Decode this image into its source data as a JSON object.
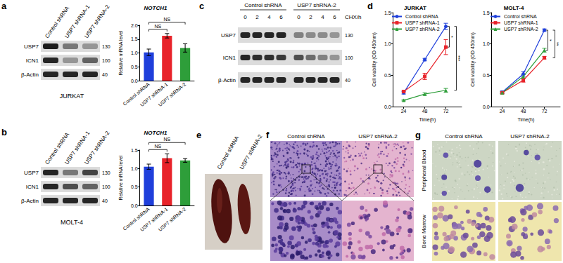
{
  "panel_letters": [
    "a",
    "b",
    "c",
    "d",
    "e",
    "f",
    "g"
  ],
  "blots": [
    {
      "lanes": [
        "Control shRNA",
        "USP7 shRNA-1",
        "USP7 shRNA-2"
      ],
      "rows": [
        {
          "name": "USP7",
          "mw": 130,
          "intensity": [
            0.95,
            0.5,
            0.35
          ]
        },
        {
          "name": "ICN1",
          "mw": 100,
          "intensity": [
            0.9,
            0.35,
            0.6
          ]
        },
        {
          "name": "β-Actin",
          "mw": 40,
          "intensity": [
            0.9,
            0.9,
            0.9
          ]
        }
      ],
      "cell_line": "JURKAT"
    },
    {
      "lanes": [
        "Control shRNA",
        "USP7 shRNA-1",
        "USP7 shRNA-2"
      ],
      "rows": [
        {
          "name": "USP7",
          "mw": 130,
          "intensity": [
            0.9,
            0.5,
            0.75
          ]
        },
        {
          "name": "ICN1",
          "mw": 100,
          "intensity": [
            0.9,
            0.7,
            0.6
          ]
        },
        {
          "name": "β-Actin",
          "mw": 40,
          "intensity": [
            0.9,
            0.9,
            0.9
          ]
        }
      ],
      "cell_line": "MOLT-4"
    },
    {
      "groups": [
        {
          "name": "Control shRNA",
          "lanes": [
            0,
            2,
            4,
            6
          ]
        },
        {
          "name": "USP7 shRNA-2",
          "lanes": [
            0,
            2,
            4,
            6
          ]
        }
      ],
      "lane_title": "CHX/h",
      "rows": [
        {
          "name": "USP7",
          "mw": 130,
          "intensity": [
            0.9,
            0.9,
            0.9,
            0.9,
            0.45,
            0.4,
            0.4,
            0.35
          ]
        },
        {
          "name": "ICN1",
          "mw": 100,
          "intensity": [
            0.9,
            0.85,
            0.85,
            0.8,
            0.7,
            0.55,
            0.45,
            0.35
          ]
        },
        {
          "name": "β-Actin",
          "mw": 40,
          "intensity": [
            0.9,
            0.9,
            0.9,
            0.9,
            0.9,
            0.9,
            0.9,
            0.9
          ]
        }
      ]
    }
  ],
  "chart_data": [
    {
      "type": "bar",
      "title": "NOTCH1",
      "y_label": "Relative mRNA level",
      "categories": [
        "Control shRNA",
        "USP7 shRNA-1",
        "USP7 shRNA-2"
      ],
      "values": [
        1.02,
        1.62,
        1.18
      ],
      "errors": [
        0.12,
        0.08,
        0.15
      ],
      "colors": [
        "#1f3fdb",
        "#e8232a",
        "#2e9e3a"
      ],
      "ylim": [
        0,
        2
      ],
      "yticks": [
        {
          "value": 0,
          "label": "0.0"
        },
        {
          "value": 0.5,
          "label": "0.5"
        },
        {
          "value": 1,
          "label": "1.0"
        },
        {
          "value": 1.5,
          "label": "1.5"
        },
        {
          "value": 2,
          "label": "2.0"
        }
      ],
      "grid": false,
      "annotations": [
        {
          "text": "NS",
          "between": [
            "Control shRNA",
            "USP7 shRNA-1"
          ]
        },
        {
          "text": "NS",
          "between": [
            "Control shRNA",
            "USP7 shRNA-2"
          ]
        }
      ]
    },
    {
      "type": "bar",
      "title": "NOTCH1",
      "y_label": "Relative mRNA level",
      "categories": [
        "Control shRNA",
        "USP7 shRNA-1",
        "USP7 shRNA-2"
      ],
      "values": [
        1.05,
        1.28,
        1.22
      ],
      "errors": [
        0.07,
        0.12,
        0.05
      ],
      "colors": [
        "#1f3fdb",
        "#e8232a",
        "#2e9e3a"
      ],
      "ylim": [
        0,
        1.5
      ],
      "yticks": [
        {
          "value": 0,
          "label": "0.0"
        },
        {
          "value": 0.5,
          "label": "0.5"
        },
        {
          "value": 1,
          "label": "1.0"
        },
        {
          "value": 1.5,
          "label": "1.5"
        }
      ],
      "grid": false,
      "annotations": [
        {
          "text": "NS",
          "between": [
            "Control shRNA",
            "USP7 shRNA-1"
          ]
        },
        {
          "text": "NS",
          "between": [
            "Control shRNA",
            "USP7 shRNA-2"
          ]
        }
      ]
    },
    {
      "type": "line",
      "title": "JURKAT",
      "x_label": "Time(h)",
      "y_label": "Cell viability (OD 450nm)",
      "x": [
        24,
        48,
        72
      ],
      "xlim": [
        12,
        90
      ],
      "xticks": [
        24,
        48,
        72
      ],
      "ylim": [
        0,
        1.5
      ],
      "yticks": [
        {
          "value": 0,
          "label": "0.0"
        },
        {
          "value": 0.5,
          "label": "0.5"
        },
        {
          "value": 1,
          "label": "1.0"
        },
        {
          "value": 1.5,
          "label": "1.5"
        }
      ],
      "legend": "upper left",
      "grid": false,
      "series": [
        {
          "name": "Control shRNA",
          "color": "#1f3fdb",
          "marker": "circle",
          "values": [
            0.22,
            0.75,
            1.28
          ],
          "errors": [
            0.02,
            0.02,
            0.05
          ]
        },
        {
          "name": "USP7 shRNA-1",
          "color": "#e8232a",
          "marker": "square",
          "values": [
            0.24,
            0.48,
            0.95
          ],
          "errors": [
            0.02,
            0.05,
            0.12
          ]
        },
        {
          "name": "USP7 shRNA-2",
          "color": "#2e9e3a",
          "marker": "triangle",
          "values": [
            0.1,
            0.2,
            0.26
          ],
          "errors": [
            0.01,
            0.02,
            0.03
          ]
        }
      ],
      "annotations": [
        {
          "text": "*",
          "between": [
            "Control shRNA",
            "USP7 shRNA-1"
          ],
          "at": 72
        },
        {
          "text": "***",
          "between": [
            "Control shRNA",
            "USP7 shRNA-2"
          ],
          "at": 72
        }
      ]
    },
    {
      "type": "line",
      "title": "MOLT-4",
      "x_label": "Time(h)",
      "y_label": "Cell viability (OD 450nm)",
      "x": [
        24,
        48,
        72
      ],
      "xlim": [
        12,
        90
      ],
      "xticks": [
        24,
        48,
        72
      ],
      "ylim": [
        0,
        1.5
      ],
      "yticks": [
        {
          "value": 0,
          "label": "0.0"
        },
        {
          "value": 0.5,
          "label": "0.5"
        },
        {
          "value": 1,
          "label": "1.0"
        },
        {
          "value": 1.5,
          "label": "1.5"
        }
      ],
      "legend": "upper left",
      "grid": false,
      "series": [
        {
          "name": "Control shRNA",
          "color": "#1f3fdb",
          "marker": "circle",
          "values": [
            0.23,
            0.52,
            1.22
          ],
          "errors": [
            0.02,
            0.04,
            0.02
          ]
        },
        {
          "name": "USP7 shRNA-1",
          "color": "#e8232a",
          "marker": "square",
          "values": [
            0.22,
            0.42,
            0.78
          ],
          "errors": [
            0.01,
            0.03,
            0.02
          ]
        },
        {
          "name": "USP7 shRNA-2",
          "color": "#2e9e3a",
          "marker": "triangle",
          "values": [
            0.22,
            0.48,
            0.9
          ],
          "errors": [
            0.02,
            0.03,
            0.03
          ]
        }
      ],
      "annotations": [
        {
          "text": "*",
          "between": [
            "Control shRNA",
            "USP7 shRNA-2"
          ],
          "at": 72
        },
        {
          "text": "**",
          "between": [
            "Control shRNA",
            "USP7 shRNA-1"
          ],
          "at": 72
        }
      ]
    }
  ],
  "spleen": {
    "labels": [
      "Control shRNA",
      "USP7 shRNA-2"
    ]
  },
  "histology": {
    "labels": [
      "Control shRNA",
      "USP7 shRNA-2"
    ]
  },
  "smears": {
    "columns": [
      "Control shRNA",
      "USP7 shRNA-2"
    ],
    "rows": [
      "Peripheral Blood",
      "Bone Marrow"
    ]
  }
}
